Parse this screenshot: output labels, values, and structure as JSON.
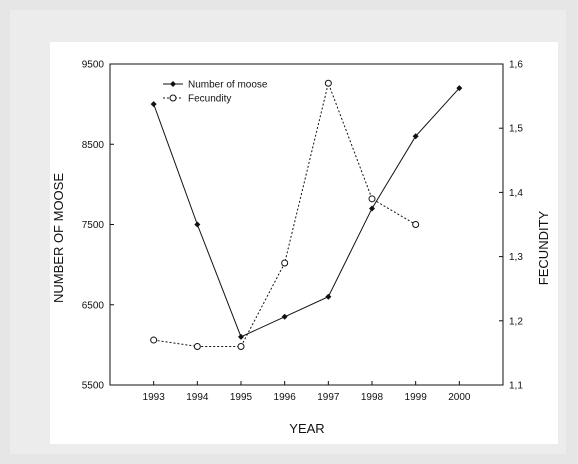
{
  "chart_data": {
    "type": "line",
    "xlabel": "YEAR",
    "ylabel_left": "NUMBER OF MOOSE",
    "ylabel_right": "FECUNDITY",
    "x_ticks": [
      "1993",
      "1994",
      "1995",
      "1996",
      "1997",
      "1998",
      "1999",
      "2000"
    ],
    "x_range": [
      1992,
      2001
    ],
    "ylim_left": [
      5500,
      9500
    ],
    "ylim_right": [
      1.1,
      1.6
    ],
    "y_ticks_left": [
      "5500",
      "6500",
      "7500",
      "8500",
      "9500"
    ],
    "y_ticks_right": [
      "1,1",
      "1,2",
      "1,3",
      "1,4",
      "1,5",
      "1,6"
    ],
    "grid": false,
    "legend_position": "top-left",
    "series": [
      {
        "name": "Number of moose",
        "axis": "left",
        "line_style": "solid",
        "marker": "filled-diamond",
        "color": "#111111",
        "x": [
          1993,
          1994,
          1995,
          1996,
          1997,
          1998,
          1999,
          2000
        ],
        "values": [
          9000,
          7500,
          6100,
          6350,
          6600,
          7700,
          8600,
          9200
        ]
      },
      {
        "name": "Fecundity",
        "axis": "right",
        "line_style": "dotted",
        "marker": "open-circle",
        "color": "#111111",
        "x": [
          1993,
          1994,
          1995,
          1996,
          1997,
          1998,
          1999
        ],
        "values": [
          1.17,
          1.16,
          1.16,
          1.29,
          1.57,
          1.39,
          1.35
        ]
      }
    ]
  }
}
